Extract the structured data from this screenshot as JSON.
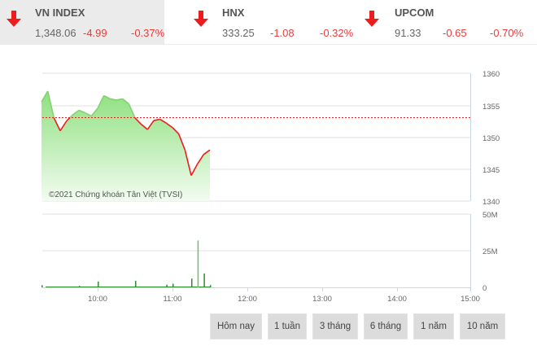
{
  "indices": [
    {
      "name": "VN INDEX",
      "value": "1,348.06",
      "change": "-4.99",
      "percent": "-0.37%",
      "direction": "down",
      "active": true
    },
    {
      "name": "HNX",
      "value": "333.25",
      "change": "-1.08",
      "percent": "-0.32%",
      "direction": "down",
      "active": false
    },
    {
      "name": "UPCOM",
      "value": "91.33",
      "change": "-0.65",
      "percent": "-0.70%",
      "direction": "down",
      "active": false
    }
  ],
  "colors": {
    "down": "#ee1c1c",
    "area_fill_top": "#8fe07f",
    "area_fill_bottom": "#eafbe6",
    "volume_bar": "#2e8b2e",
    "reference_line": "#ee1c1c"
  },
  "credit": "©2021 Chứng khoán Tân Việt (TVSI)",
  "range_buttons": [
    "Hôm nay",
    "1 tuần",
    "3 tháng",
    "6 tháng",
    "1 năm",
    "10 năm"
  ],
  "chart_data": [
    {
      "type": "area",
      "title": "VN INDEX intraday",
      "ylabel": "",
      "xlabel": "",
      "ylim": [
        1340,
        1360
      ],
      "y_ticks": [
        "1360",
        "1355",
        "1350",
        "1345",
        "1340"
      ],
      "x_ticks": [
        "10:00",
        "11:00",
        "12:00",
        "13:00",
        "14:00",
        "15:00"
      ],
      "reference_value": 1353.05,
      "grid": true,
      "series": [
        {
          "name": "VN INDEX",
          "x": [
            "09:15",
            "09:20",
            "09:25",
            "09:30",
            "09:35",
            "09:40",
            "09:45",
            "09:50",
            "09:55",
            "10:00",
            "10:05",
            "10:10",
            "10:15",
            "10:20",
            "10:25",
            "10:30",
            "10:35",
            "10:40",
            "10:45",
            "10:50",
            "10:55",
            "11:00",
            "11:05",
            "11:10",
            "11:15",
            "11:20",
            "11:25",
            "11:30"
          ],
          "values": [
            1355.5,
            1357.2,
            1353.0,
            1351.0,
            1352.5,
            1353.5,
            1354.2,
            1353.8,
            1353.3,
            1354.5,
            1356.5,
            1356.0,
            1355.8,
            1356.0,
            1355.2,
            1353.0,
            1352.0,
            1351.2,
            1352.6,
            1352.8,
            1352.2,
            1351.5,
            1350.5,
            1348.0,
            1344.0,
            1345.8,
            1347.3,
            1348.0
          ]
        }
      ]
    },
    {
      "type": "bar",
      "title": "Volume",
      "ylim": [
        0,
        50000000
      ],
      "y_ticks": [
        "50M",
        "25M",
        "0"
      ],
      "x_ticks": [
        "10:00",
        "11:00",
        "12:00",
        "13:00",
        "14:00",
        "15:00"
      ],
      "grid": true,
      "series": [
        {
          "name": "Volume",
          "x": [
            "09:15",
            "09:45",
            "10:00",
            "10:30",
            "10:55",
            "11:00",
            "11:15",
            "11:20",
            "11:25",
            "11:30"
          ],
          "values": [
            1500000,
            1000000,
            4000000,
            4500000,
            1800000,
            2500000,
            6000000,
            32000000,
            9500000,
            1500000
          ]
        }
      ]
    }
  ]
}
